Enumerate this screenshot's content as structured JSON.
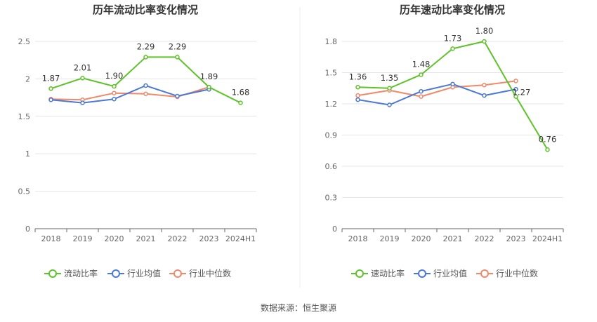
{
  "source_note": "数据来源：恒生聚源",
  "colors": {
    "primary": "#5ec229",
    "industry_avg": "#4a78d4",
    "industry_median": "#f0896a",
    "grid": "#e6e6e6",
    "axis": "#666666"
  },
  "chart_data": [
    {
      "type": "line",
      "title": "历年流动比率变化情况",
      "categories": [
        "2018",
        "2019",
        "2020",
        "2021",
        "2022",
        "2023",
        "2024H1"
      ],
      "ylim": [
        0,
        2.5
      ],
      "yticks": [
        "0",
        "0.5",
        "1",
        "1.5",
        "2",
        "2.5"
      ],
      "grid": true,
      "legend_position": "bottom",
      "series": [
        {
          "name": "流动比率",
          "color": "#5ec229",
          "values": [
            1.87,
            2.01,
            1.9,
            2.29,
            2.29,
            1.89,
            1.68
          ],
          "labels": [
            "1.87",
            "2.01",
            "1.90",
            "2.29",
            "2.29",
            "1.89",
            "1.68"
          ]
        },
        {
          "name": "行业均值",
          "color": "#4a78d4",
          "values": [
            1.72,
            1.68,
            1.73,
            1.91,
            1.77,
            1.86,
            null
          ]
        },
        {
          "name": "行业中位数",
          "color": "#f0896a",
          "values": [
            1.73,
            1.72,
            1.81,
            1.8,
            1.76,
            1.89,
            null
          ]
        }
      ]
    },
    {
      "type": "line",
      "title": "历年速动比率变化情况",
      "categories": [
        "2018",
        "2019",
        "2020",
        "2021",
        "2022",
        "2023",
        "2024H1"
      ],
      "ylim": [
        0,
        1.8
      ],
      "yticks": [
        "0",
        "0.3",
        "0.6",
        "0.9",
        "1.2",
        "1.5",
        "1.8"
      ],
      "grid": true,
      "legend_position": "bottom",
      "series": [
        {
          "name": "速动比率",
          "color": "#5ec229",
          "values": [
            1.36,
            1.35,
            1.48,
            1.73,
            1.8,
            1.27,
            0.76
          ],
          "labels": [
            "1.36",
            "1.35",
            "1.48",
            "1.73",
            "1.80",
            "1.27",
            "0.76"
          ]
        },
        {
          "name": "行业均值",
          "color": "#4a78d4",
          "values": [
            1.24,
            1.19,
            1.32,
            1.39,
            1.28,
            1.34,
            null
          ]
        },
        {
          "name": "行业中位数",
          "color": "#f0896a",
          "values": [
            1.28,
            1.33,
            1.27,
            1.36,
            1.38,
            1.42,
            null
          ]
        }
      ]
    }
  ]
}
